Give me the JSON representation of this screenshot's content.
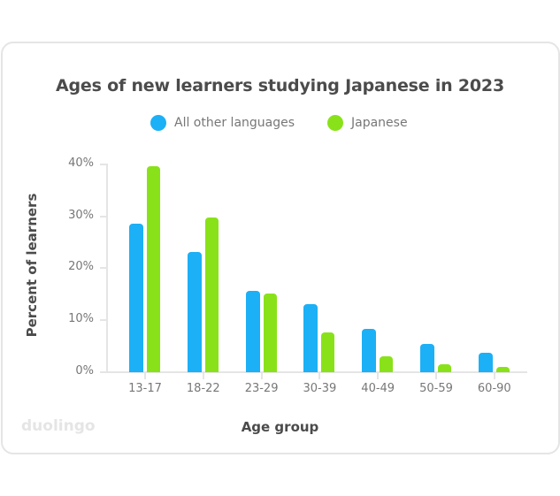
{
  "chart_data": {
    "type": "bar",
    "title": "Ages of new learners studying Japanese in 2023",
    "xlabel": "Age group",
    "ylabel": "Percent of learners",
    "categories": [
      "13-17",
      "18-22",
      "23-29",
      "30-39",
      "40-49",
      "50-59",
      "60-90"
    ],
    "series": [
      {
        "name": "All other languages",
        "color": "#1cb0f6",
        "values": [
          28.6,
          23.1,
          15.6,
          13.0,
          8.4,
          5.5,
          3.8
        ]
      },
      {
        "name": "Japanese",
        "color": "#89e219",
        "values": [
          39.6,
          29.7,
          15.1,
          7.6,
          3.0,
          1.5,
          1.0
        ]
      }
    ],
    "ylim": [
      0,
      40
    ],
    "yticks": [
      "0%",
      "10%",
      "20%",
      "30%",
      "40%"
    ],
    "grid": false,
    "legend_position": "top"
  },
  "branding": {
    "logo_text": "duolingo"
  }
}
